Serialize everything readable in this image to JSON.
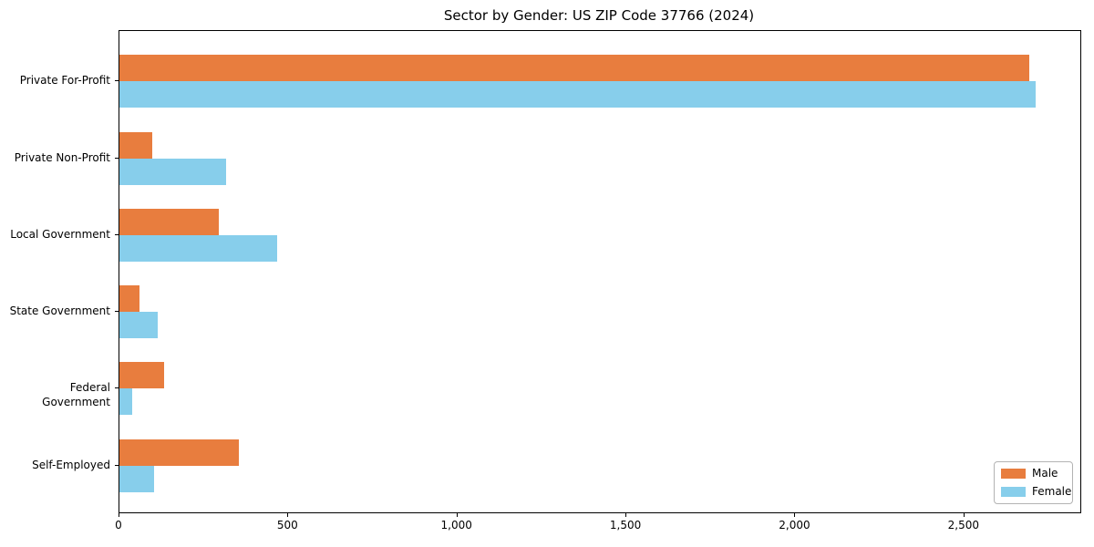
{
  "chart_data": {
    "type": "bar",
    "orientation": "horizontal",
    "title": "Sector by Gender: US ZIP Code 37766 (2024)",
    "categories": [
      "Private For-Profit",
      "Private Non-Profit",
      "Local Government",
      "State Government",
      "Federal Government",
      "Self-Employed"
    ],
    "series": [
      {
        "name": "Male",
        "color": "#e87d3e",
        "values": [
          2693,
          98,
          293,
          60,
          131,
          354
        ]
      },
      {
        "name": "Female",
        "color": "#87ceeb",
        "values": [
          2711,
          316,
          467,
          113,
          37,
          103
        ]
      }
    ],
    "xlabel": "",
    "ylabel": "",
    "xlim": [
      0,
      2843
    ],
    "x_ticks": [
      {
        "value": 0,
        "label": "0"
      },
      {
        "value": 500,
        "label": "500"
      },
      {
        "value": 1000,
        "label": "1,000"
      },
      {
        "value": 1500,
        "label": "1,500"
      },
      {
        "value": 2000,
        "label": "2,000"
      },
      {
        "value": 2500,
        "label": "2,500"
      }
    ],
    "legend": {
      "position": "lower right"
    },
    "grid": false
  }
}
